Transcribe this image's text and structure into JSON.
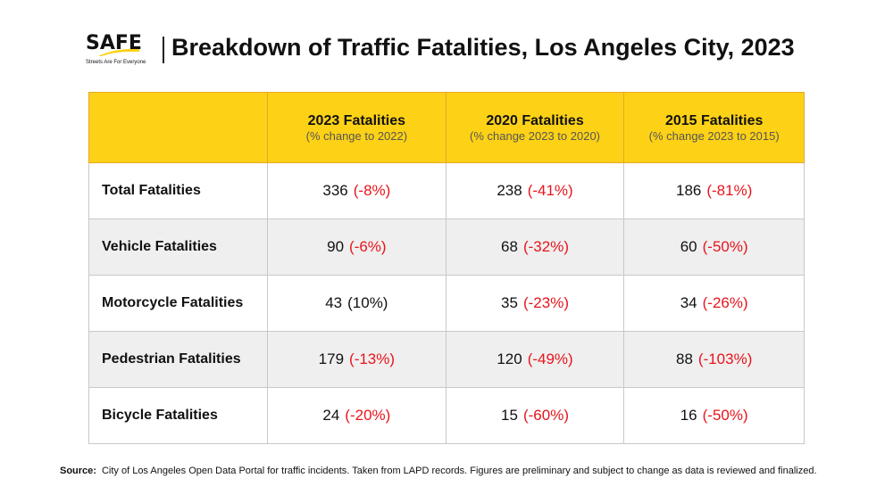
{
  "logo": {
    "text": "SAFE",
    "tagline": "Streets Are For Everyone"
  },
  "title": "Breakdown of Traffic Fatalities, Los Angeles City, 2023",
  "table": {
    "headers": [
      {
        "title": "",
        "subtitle": ""
      },
      {
        "title": "2023 Fatalities",
        "subtitle": "(% change to 2022)"
      },
      {
        "title": "2020 Fatalities",
        "subtitle": "(% change 2023 to 2020)"
      },
      {
        "title": "2015 Fatalities",
        "subtitle": "(% change 2023 to 2015)"
      }
    ],
    "rows": [
      {
        "label": "Total Fatalities",
        "cells": [
          {
            "value": "336",
            "change": "(-8%)"
          },
          {
            "value": "238",
            "change": "(-41%)"
          },
          {
            "value": "186",
            "change": "(-81%)"
          }
        ]
      },
      {
        "label": "Vehicle Fatalities",
        "cells": [
          {
            "value": "90",
            "change": "(-6%)"
          },
          {
            "value": "68",
            "change": "(-32%)"
          },
          {
            "value": "60",
            "change": "(-50%)"
          }
        ]
      },
      {
        "label": "Motorcycle Fatalities",
        "cells": [
          {
            "value": "43",
            "change": "(10%)"
          },
          {
            "value": "35",
            "change": "(-23%)"
          },
          {
            "value": "34",
            "change": "(-26%)"
          }
        ]
      },
      {
        "label": "Pedestrian Fatalities",
        "cells": [
          {
            "value": "179",
            "change": "(-13%)"
          },
          {
            "value": "120",
            "change": "(-49%)"
          },
          {
            "value": "88",
            "change": "(-103%)"
          }
        ]
      },
      {
        "label": "Bicycle Fatalities",
        "cells": [
          {
            "value": "24",
            "change": "(-20%)"
          },
          {
            "value": "15",
            "change": "(-60%)"
          },
          {
            "value": "16",
            "change": "(-50%)"
          }
        ]
      }
    ]
  },
  "source": {
    "label": "Source:",
    "text": "City of Los Angeles Open Data Portal for traffic incidents. Taken from LAPD records. Figures are preliminary and subject to change as data is reviewed and finalized."
  },
  "colors": {
    "header": "#fdd116",
    "negative": "#e8141b",
    "alt_row": "#efefef"
  }
}
